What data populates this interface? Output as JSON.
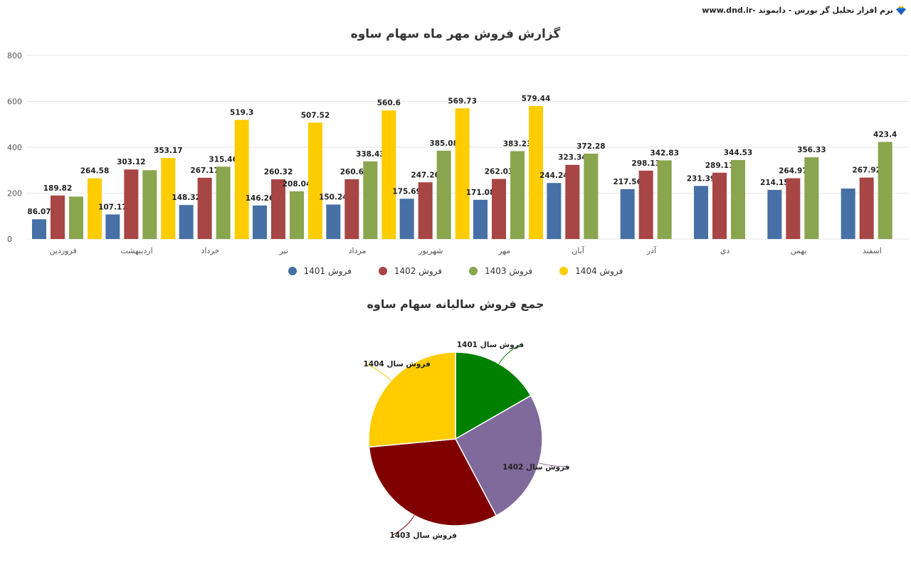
{
  "header": {
    "brand_text": "نرم افزار تحلیل گر بورس - دایموند -www.dnd.ir",
    "brand_icon": "diamond-crown-icon"
  },
  "colors": {
    "s1401": "#4670a6",
    "s1402": "#a84545",
    "s1403": "#89a54e",
    "s1404": "#ffcc00",
    "pie1401": "#008000",
    "pie1402": "#80699b",
    "pie1403": "#800000",
    "pie1404": "#ffcc00",
    "grid": "#e6e6e6",
    "axis_text": "#555555",
    "label_text": "#222222"
  },
  "chart_data": [
    {
      "type": "bar",
      "title": "گزارش فروش مهر ماه سهام ساوه",
      "xlabel": "",
      "ylabel": "",
      "ylim": [
        0,
        800
      ],
      "yticks": [
        0,
        200,
        400,
        600,
        800
      ],
      "grid": true,
      "legend_position": "bottom",
      "categories": [
        "فروردین",
        "اردیبهشت",
        "خرداد",
        "تیر",
        "مرداد",
        "شهریور",
        "مهر",
        "آبان",
        "آذر",
        "دي",
        "بهمن",
        "اسفند"
      ],
      "series": [
        {
          "name": "فروش 1401",
          "color_key": "s1401",
          "values": [
            86.07,
            107.17,
            148.32,
            146.26,
            150.24,
            175.69,
            171.08,
            244.24,
            217.56,
            231.39,
            214.15,
            220
          ],
          "labels": [
            "86.07",
            "107.17",
            "148.32",
            "146.26",
            "150.24",
            "175.69",
            "171.08",
            "244.24",
            "217.56",
            "231.39",
            "214.15",
            ""
          ]
        },
        {
          "name": "فروش 1402",
          "color_key": "s1402",
          "values": [
            189.82,
            303.12,
            267.17,
            260.32,
            260.6,
            247.26,
            262.03,
            323.34,
            298.13,
            289.11,
            264.97,
            267.92
          ],
          "labels": [
            "189.82",
            "303.12",
            "267.17",
            "260.32",
            "260.6",
            "247.26",
            "262.03",
            "323.34",
            "298.13",
            "289.11",
            "264.97",
            "267.92"
          ]
        },
        {
          "name": "فروش 1403",
          "color_key": "s1403",
          "values": [
            185,
            300,
            315.46,
            208.04,
            338.43,
            385.08,
            383.23,
            372.28,
            342.83,
            344.53,
            356.33,
            423.4
          ],
          "labels": [
            "",
            "",
            "315.46",
            "208.04",
            "338.43",
            "385.08",
            "383.23",
            "372.28",
            "342.83",
            "344.53",
            "356.33",
            "423.4"
          ]
        },
        {
          "name": "فروش 1404",
          "color_key": "s1404",
          "values": [
            264.58,
            353.17,
            519.3,
            507.52,
            560.6,
            569.73,
            579.44,
            null,
            null,
            null,
            null,
            null
          ],
          "labels": [
            "264.58",
            "353.17",
            "519.3",
            "507.52",
            "560.6",
            "569.73",
            "579.44",
            "",
            "",
            "",
            "",
            ""
          ]
        }
      ]
    },
    {
      "type": "pie",
      "title": "جمع فروش سالیانه سهام ساوه",
      "legend_position": "none",
      "categories": [
        "فروش سال 1401",
        "فروش سال 1402",
        "فروش سال 1403",
        "فروش سال 1404"
      ],
      "values": [
        2114,
        3234,
        3958,
        3354
      ],
      "colors_keys": [
        "pie1401",
        "pie1402",
        "pie1403",
        "pie1404"
      ]
    }
  ]
}
